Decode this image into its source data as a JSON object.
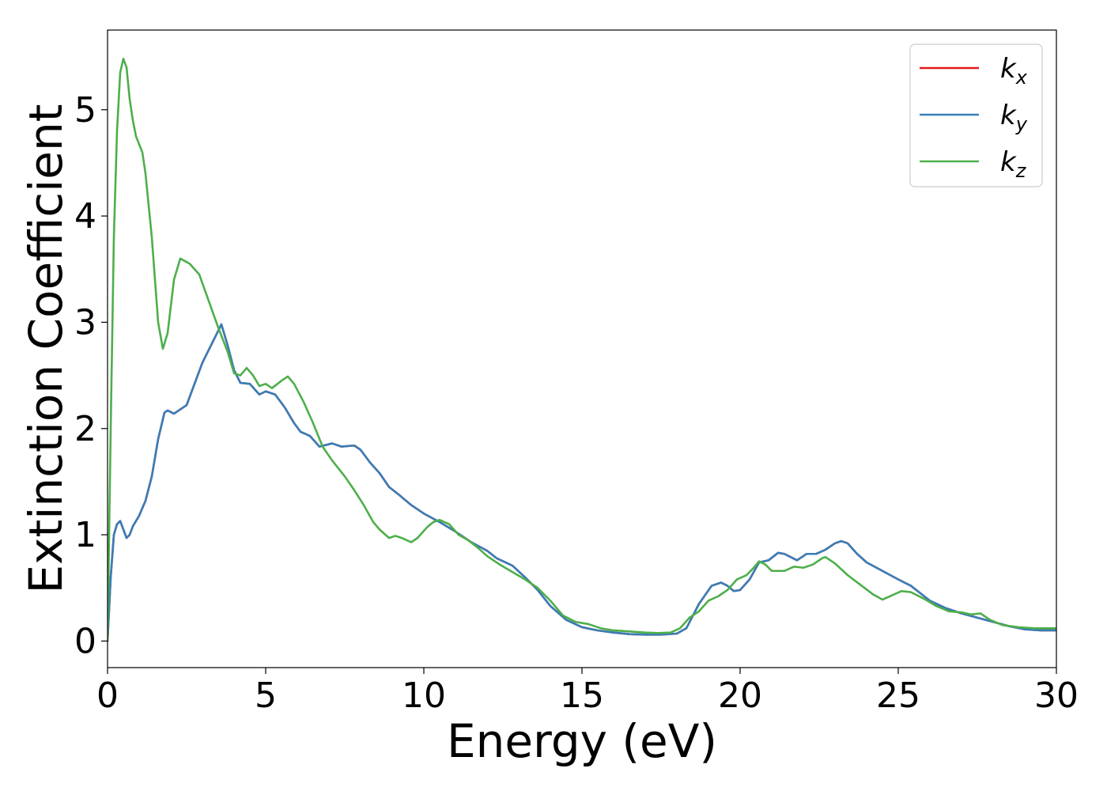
{
  "chart_data": {
    "type": "line",
    "title": "",
    "xlabel": "Energy (eV)",
    "ylabel": "Extinction Coefficient",
    "xlim": [
      0,
      30
    ],
    "ylim": [
      -0.25,
      5.75
    ],
    "xticks": [
      0,
      5,
      10,
      15,
      20,
      25,
      30
    ],
    "yticks": [
      0,
      1,
      2,
      3,
      4,
      5
    ],
    "grid": false,
    "legend_position": "top-right",
    "series": [
      {
        "name": "k",
        "subscript": "x",
        "color": "#e41a1c",
        "same_as": "k_y",
        "points": [
          [
            0,
            0
          ],
          [
            0.1,
            0.6
          ],
          [
            0.2,
            1.0
          ],
          [
            0.3,
            1.1
          ],
          [
            0.4,
            1.13
          ],
          [
            0.5,
            1.05
          ],
          [
            0.6,
            0.97
          ],
          [
            0.7,
            1.0
          ],
          [
            0.8,
            1.08
          ],
          [
            1.0,
            1.18
          ],
          [
            1.2,
            1.32
          ],
          [
            1.4,
            1.55
          ],
          [
            1.6,
            1.9
          ],
          [
            1.8,
            2.15
          ],
          [
            1.9,
            2.17
          ],
          [
            2.1,
            2.14
          ],
          [
            2.3,
            2.18
          ],
          [
            2.5,
            2.22
          ],
          [
            2.7,
            2.38
          ],
          [
            3.0,
            2.62
          ],
          [
            3.3,
            2.8
          ],
          [
            3.6,
            2.98
          ],
          [
            3.8,
            2.78
          ],
          [
            4.0,
            2.55
          ],
          [
            4.2,
            2.43
          ],
          [
            4.5,
            2.42
          ],
          [
            4.8,
            2.32
          ],
          [
            5.0,
            2.35
          ],
          [
            5.3,
            2.32
          ],
          [
            5.6,
            2.2
          ],
          [
            5.9,
            2.05
          ],
          [
            6.1,
            1.97
          ],
          [
            6.4,
            1.93
          ],
          [
            6.7,
            1.83
          ],
          [
            7.1,
            1.86
          ],
          [
            7.4,
            1.83
          ],
          [
            7.8,
            1.84
          ],
          [
            8.0,
            1.8
          ],
          [
            8.3,
            1.68
          ],
          [
            8.6,
            1.58
          ],
          [
            8.9,
            1.45
          ],
          [
            9.2,
            1.38
          ],
          [
            9.6,
            1.28
          ],
          [
            10.0,
            1.2
          ],
          [
            10.5,
            1.12
          ],
          [
            11.0,
            1.03
          ],
          [
            11.5,
            0.93
          ],
          [
            12.0,
            0.85
          ],
          [
            12.3,
            0.78
          ],
          [
            12.8,
            0.71
          ],
          [
            13.2,
            0.6
          ],
          [
            13.6,
            0.48
          ],
          [
            14.0,
            0.33
          ],
          [
            14.5,
            0.2
          ],
          [
            15.0,
            0.13
          ],
          [
            15.5,
            0.1
          ],
          [
            16.0,
            0.08
          ],
          [
            16.5,
            0.065
          ],
          [
            17.0,
            0.06
          ],
          [
            17.5,
            0.06
          ],
          [
            18.0,
            0.07
          ],
          [
            18.3,
            0.12
          ],
          [
            18.7,
            0.35
          ],
          [
            19.1,
            0.52
          ],
          [
            19.4,
            0.55
          ],
          [
            19.6,
            0.52
          ],
          [
            19.8,
            0.47
          ],
          [
            20.0,
            0.48
          ],
          [
            20.3,
            0.58
          ],
          [
            20.6,
            0.74
          ],
          [
            20.9,
            0.76
          ],
          [
            21.2,
            0.83
          ],
          [
            21.4,
            0.82
          ],
          [
            21.8,
            0.76
          ],
          [
            22.1,
            0.82
          ],
          [
            22.4,
            0.82
          ],
          [
            22.7,
            0.86
          ],
          [
            23.0,
            0.92
          ],
          [
            23.2,
            0.94
          ],
          [
            23.4,
            0.92
          ],
          [
            23.7,
            0.82
          ],
          [
            24.0,
            0.74
          ],
          [
            24.5,
            0.66
          ],
          [
            25.0,
            0.58
          ],
          [
            25.4,
            0.52
          ],
          [
            25.7,
            0.45
          ],
          [
            26.0,
            0.38
          ],
          [
            26.5,
            0.31
          ],
          [
            27.0,
            0.26
          ],
          [
            27.5,
            0.22
          ],
          [
            28.0,
            0.18
          ],
          [
            28.5,
            0.14
          ],
          [
            29.0,
            0.11
          ],
          [
            29.5,
            0.1
          ],
          [
            30.0,
            0.1
          ]
        ]
      },
      {
        "name": "k",
        "subscript": "y",
        "color": "#377eb8",
        "points": [
          [
            0,
            0
          ],
          [
            0.1,
            0.6
          ],
          [
            0.2,
            1.0
          ],
          [
            0.3,
            1.1
          ],
          [
            0.4,
            1.13
          ],
          [
            0.5,
            1.05
          ],
          [
            0.6,
            0.97
          ],
          [
            0.7,
            1.0
          ],
          [
            0.8,
            1.08
          ],
          [
            1.0,
            1.18
          ],
          [
            1.2,
            1.32
          ],
          [
            1.4,
            1.55
          ],
          [
            1.6,
            1.9
          ],
          [
            1.8,
            2.15
          ],
          [
            1.9,
            2.17
          ],
          [
            2.1,
            2.14
          ],
          [
            2.3,
            2.18
          ],
          [
            2.5,
            2.22
          ],
          [
            2.7,
            2.38
          ],
          [
            3.0,
            2.62
          ],
          [
            3.3,
            2.8
          ],
          [
            3.6,
            2.98
          ],
          [
            3.8,
            2.78
          ],
          [
            4.0,
            2.55
          ],
          [
            4.2,
            2.43
          ],
          [
            4.5,
            2.42
          ],
          [
            4.8,
            2.32
          ],
          [
            5.0,
            2.35
          ],
          [
            5.3,
            2.32
          ],
          [
            5.6,
            2.2
          ],
          [
            5.9,
            2.05
          ],
          [
            6.1,
            1.97
          ],
          [
            6.4,
            1.93
          ],
          [
            6.7,
            1.83
          ],
          [
            7.1,
            1.86
          ],
          [
            7.4,
            1.83
          ],
          [
            7.8,
            1.84
          ],
          [
            8.0,
            1.8
          ],
          [
            8.3,
            1.68
          ],
          [
            8.6,
            1.58
          ],
          [
            8.9,
            1.45
          ],
          [
            9.2,
            1.38
          ],
          [
            9.6,
            1.28
          ],
          [
            10.0,
            1.2
          ],
          [
            10.5,
            1.12
          ],
          [
            11.0,
            1.03
          ],
          [
            11.5,
            0.93
          ],
          [
            12.0,
            0.85
          ],
          [
            12.3,
            0.78
          ],
          [
            12.8,
            0.71
          ],
          [
            13.2,
            0.6
          ],
          [
            13.6,
            0.48
          ],
          [
            14.0,
            0.33
          ],
          [
            14.5,
            0.2
          ],
          [
            15.0,
            0.13
          ],
          [
            15.5,
            0.1
          ],
          [
            16.0,
            0.08
          ],
          [
            16.5,
            0.065
          ],
          [
            17.0,
            0.06
          ],
          [
            17.5,
            0.06
          ],
          [
            18.0,
            0.07
          ],
          [
            18.3,
            0.12
          ],
          [
            18.7,
            0.35
          ],
          [
            19.1,
            0.52
          ],
          [
            19.4,
            0.55
          ],
          [
            19.6,
            0.52
          ],
          [
            19.8,
            0.47
          ],
          [
            20.0,
            0.48
          ],
          [
            20.3,
            0.58
          ],
          [
            20.6,
            0.74
          ],
          [
            20.9,
            0.76
          ],
          [
            21.2,
            0.83
          ],
          [
            21.4,
            0.82
          ],
          [
            21.8,
            0.76
          ],
          [
            22.1,
            0.82
          ],
          [
            22.4,
            0.82
          ],
          [
            22.7,
            0.86
          ],
          [
            23.0,
            0.92
          ],
          [
            23.2,
            0.94
          ],
          [
            23.4,
            0.92
          ],
          [
            23.7,
            0.82
          ],
          [
            24.0,
            0.74
          ],
          [
            24.5,
            0.66
          ],
          [
            25.0,
            0.58
          ],
          [
            25.4,
            0.52
          ],
          [
            25.7,
            0.45
          ],
          [
            26.0,
            0.38
          ],
          [
            26.5,
            0.31
          ],
          [
            27.0,
            0.26
          ],
          [
            27.5,
            0.22
          ],
          [
            28.0,
            0.18
          ],
          [
            28.5,
            0.14
          ],
          [
            29.0,
            0.11
          ],
          [
            29.5,
            0.1
          ],
          [
            30.0,
            0.1
          ]
        ]
      },
      {
        "name": "k",
        "subscript": "z",
        "color": "#4daf4a",
        "points": [
          [
            0,
            0
          ],
          [
            0.1,
            2.0
          ],
          [
            0.2,
            3.8
          ],
          [
            0.3,
            4.8
          ],
          [
            0.4,
            5.35
          ],
          [
            0.5,
            5.48
          ],
          [
            0.6,
            5.4
          ],
          [
            0.7,
            5.1
          ],
          [
            0.8,
            4.9
          ],
          [
            0.9,
            4.75
          ],
          [
            1.1,
            4.6
          ],
          [
            1.2,
            4.4
          ],
          [
            1.4,
            3.8
          ],
          [
            1.6,
            3.0
          ],
          [
            1.75,
            2.75
          ],
          [
            1.9,
            2.9
          ],
          [
            2.1,
            3.4
          ],
          [
            2.3,
            3.6
          ],
          [
            2.6,
            3.55
          ],
          [
            2.9,
            3.45
          ],
          [
            3.2,
            3.2
          ],
          [
            3.5,
            2.95
          ],
          [
            3.8,
            2.72
          ],
          [
            4.0,
            2.52
          ],
          [
            4.2,
            2.5
          ],
          [
            4.4,
            2.57
          ],
          [
            4.6,
            2.5
          ],
          [
            4.8,
            2.4
          ],
          [
            5.0,
            2.42
          ],
          [
            5.2,
            2.38
          ],
          [
            5.5,
            2.45
          ],
          [
            5.7,
            2.49
          ],
          [
            5.9,
            2.42
          ],
          [
            6.2,
            2.25
          ],
          [
            6.5,
            2.05
          ],
          [
            6.8,
            1.83
          ],
          [
            7.1,
            1.7
          ],
          [
            7.5,
            1.55
          ],
          [
            7.8,
            1.42
          ],
          [
            8.1,
            1.28
          ],
          [
            8.4,
            1.12
          ],
          [
            8.6,
            1.05
          ],
          [
            8.9,
            0.97
          ],
          [
            9.1,
            0.99
          ],
          [
            9.3,
            0.97
          ],
          [
            9.6,
            0.93
          ],
          [
            9.8,
            0.97
          ],
          [
            10.1,
            1.07
          ],
          [
            10.3,
            1.12
          ],
          [
            10.5,
            1.14
          ],
          [
            10.8,
            1.1
          ],
          [
            11.1,
            1.0
          ],
          [
            11.4,
            0.95
          ],
          [
            11.7,
            0.88
          ],
          [
            12.0,
            0.8
          ],
          [
            12.4,
            0.72
          ],
          [
            12.8,
            0.65
          ],
          [
            13.2,
            0.58
          ],
          [
            13.6,
            0.5
          ],
          [
            14.0,
            0.38
          ],
          [
            14.4,
            0.24
          ],
          [
            14.8,
            0.18
          ],
          [
            15.2,
            0.16
          ],
          [
            15.6,
            0.12
          ],
          [
            16.0,
            0.1
          ],
          [
            16.5,
            0.09
          ],
          [
            17.0,
            0.08
          ],
          [
            17.4,
            0.075
          ],
          [
            17.8,
            0.08
          ],
          [
            18.1,
            0.12
          ],
          [
            18.4,
            0.22
          ],
          [
            18.7,
            0.28
          ],
          [
            19.0,
            0.38
          ],
          [
            19.3,
            0.42
          ],
          [
            19.6,
            0.48
          ],
          [
            19.9,
            0.58
          ],
          [
            20.2,
            0.62
          ],
          [
            20.4,
            0.68
          ],
          [
            20.6,
            0.75
          ],
          [
            20.8,
            0.72
          ],
          [
            21.0,
            0.66
          ],
          [
            21.4,
            0.66
          ],
          [
            21.7,
            0.7
          ],
          [
            22.0,
            0.69
          ],
          [
            22.3,
            0.72
          ],
          [
            22.6,
            0.78
          ],
          [
            22.7,
            0.79
          ],
          [
            23.0,
            0.73
          ],
          [
            23.4,
            0.62
          ],
          [
            23.8,
            0.53
          ],
          [
            24.2,
            0.44
          ],
          [
            24.5,
            0.39
          ],
          [
            24.8,
            0.43
          ],
          [
            25.1,
            0.47
          ],
          [
            25.4,
            0.46
          ],
          [
            25.8,
            0.4
          ],
          [
            26.2,
            0.33
          ],
          [
            26.6,
            0.28
          ],
          [
            27.0,
            0.27
          ],
          [
            27.3,
            0.25
          ],
          [
            27.6,
            0.26
          ],
          [
            27.9,
            0.2
          ],
          [
            28.3,
            0.15
          ],
          [
            28.8,
            0.13
          ],
          [
            29.3,
            0.12
          ],
          [
            30.0,
            0.12
          ]
        ]
      }
    ]
  }
}
